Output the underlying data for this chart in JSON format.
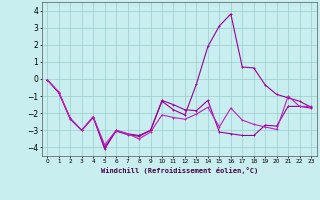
{
  "xlabel": "Windchill (Refroidissement éolien,°C)",
  "background_color": "#c8eef0",
  "grid_color": "#99cccc",
  "line_color1": "#990099",
  "line_color2": "#bb22bb",
  "line_color3": "#cc44cc",
  "xlim": [
    -0.5,
    23.5
  ],
  "ylim": [
    -4.5,
    4.5
  ],
  "xticks": [
    0,
    1,
    2,
    3,
    4,
    5,
    6,
    7,
    8,
    9,
    10,
    11,
    12,
    13,
    14,
    15,
    16,
    17,
    18,
    19,
    20,
    21,
    22,
    23
  ],
  "yticks": [
    -4,
    -3,
    -2,
    -1,
    0,
    1,
    2,
    3,
    4
  ],
  "line1_x": [
    0,
    1,
    2,
    3,
    4,
    5,
    6,
    7,
    8,
    9,
    10,
    11,
    12,
    13,
    14,
    15,
    16,
    17,
    18,
    19,
    20,
    21,
    22,
    23
  ],
  "line1_y": [
    -0.05,
    -0.8,
    -2.3,
    -3.0,
    -2.2,
    -4.1,
    -3.0,
    -3.2,
    -3.3,
    -3.0,
    -1.25,
    -1.5,
    -1.8,
    -1.85,
    -1.25,
    -3.1,
    -3.2,
    -3.3,
    -3.3,
    -2.7,
    -2.75,
    -1.6,
    -1.6,
    -1.7
  ],
  "line2_x": [
    0,
    1,
    2,
    3,
    4,
    5,
    6,
    7,
    8,
    9,
    10,
    11,
    12,
    13,
    14,
    15,
    16,
    17,
    18,
    19,
    20,
    21,
    22,
    23
  ],
  "line2_y": [
    -0.05,
    -0.8,
    -2.35,
    -3.0,
    -2.25,
    -4.0,
    -3.05,
    -3.25,
    -3.35,
    -3.0,
    -1.3,
    -1.8,
    -2.1,
    -0.3,
    1.9,
    3.1,
    3.8,
    0.7,
    0.65,
    -0.35,
    -0.9,
    -1.1,
    -1.3,
    -1.65
  ],
  "line3_x": [
    0,
    1,
    2,
    3,
    4,
    5,
    6,
    7,
    8,
    9,
    10,
    11,
    12,
    13,
    14,
    15,
    16,
    17,
    18,
    19,
    20,
    21,
    22,
    23
  ],
  "line3_y": [
    -0.05,
    -0.75,
    -2.3,
    -3.0,
    -2.2,
    -3.85,
    -3.0,
    -3.2,
    -3.5,
    -3.1,
    -2.1,
    -2.25,
    -2.35,
    -2.05,
    -1.65,
    -2.8,
    -1.7,
    -2.4,
    -2.65,
    -2.8,
    -2.95,
    -1.0,
    -1.6,
    -1.6
  ]
}
